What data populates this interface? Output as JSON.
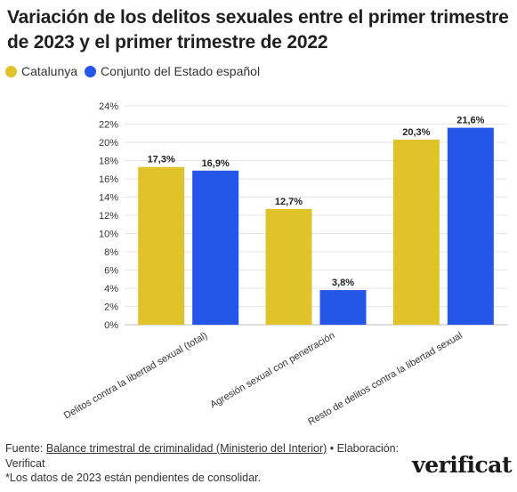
{
  "header": {
    "title": "Variación de los delitos sexuales entre el primer trimestre de 2023 y el primer trimestre de 2022"
  },
  "legend": [
    {
      "label": "Catalunya",
      "color": "#e0c32a"
    },
    {
      "label": "Conjunto del Estado español",
      "color": "#2457e8"
    }
  ],
  "chart_data": {
    "type": "bar",
    "title": "Variación de los delitos sexuales entre el primer trimestre de 2023 y el primer trimestre de 2022",
    "categories": [
      "Delitos contra la libertad sexual (total)",
      "Agresión sexual con penetración",
      "Resto de delitos contra la libertad sexual"
    ],
    "series": [
      {
        "name": "Catalunya",
        "values": [
          17.3,
          12.7,
          20.3
        ],
        "labels": [
          "17,3%",
          "12,7%",
          "20,3%"
        ],
        "color": "#e0c32a"
      },
      {
        "name": "Conjunto del Estado español",
        "values": [
          16.9,
          3.8,
          21.6
        ],
        "labels": [
          "16,9%",
          "3,8%",
          "21,6%"
        ],
        "color": "#2457e8"
      }
    ],
    "ylim": [
      0,
      24
    ],
    "yticks": [
      "0%",
      "2%",
      "4%",
      "6%",
      "8%",
      "10%",
      "12%",
      "14%",
      "16%",
      "18%",
      "20%",
      "22%",
      "24%"
    ],
    "grid": true,
    "legend_position": "top-left"
  },
  "footer": {
    "source_prefix": "Fuente: ",
    "source_link": "Balance trimestral de criminalidad (Ministerio del Interior)",
    "source_suffix": " • Elaboración: Verificat",
    "note": "*Los datos de 2023 están pendientes de consolidar."
  },
  "logo": {
    "text": "verificat"
  }
}
